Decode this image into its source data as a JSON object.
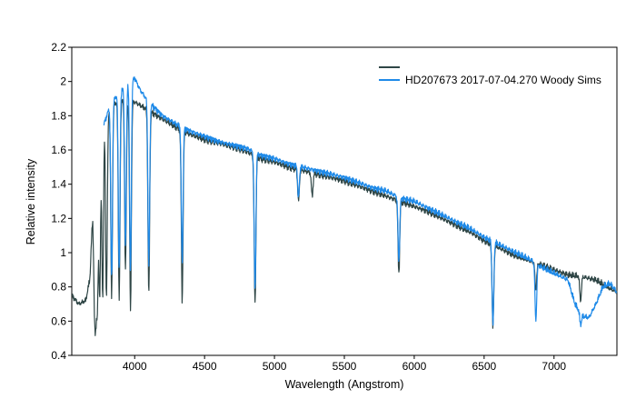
{
  "chart_data": {
    "type": "line",
    "title": "",
    "xlabel": "Wavelength (Angstrom)",
    "ylabel": "Relative intensity",
    "xlim": [
      3550,
      7450
    ],
    "ylim": [
      0.4,
      2.2
    ],
    "x_ticks": [
      4000,
      4500,
      5000,
      5500,
      6000,
      6500,
      7000
    ],
    "y_ticks": [
      0.4,
      0.6,
      0.8,
      1.0,
      1.2,
      1.4,
      1.6,
      1.8,
      2.0,
      2.2
    ],
    "x_tick_labels": [
      "4000",
      "4500",
      "5000",
      "5500",
      "6000",
      "6500",
      "7000"
    ],
    "y_tick_labels": [
      "0.4",
      "0.6",
      "0.8",
      "1",
      "1.2",
      "1.4",
      "1.6",
      "1.8",
      "2",
      "2.2"
    ],
    "grid": false,
    "legend_position": "top-right",
    "series": [
      {
        "name": "",
        "color": "#2f4646",
        "continuum": [
          [
            3550,
            0.75
          ],
          [
            3600,
            0.7
          ],
          [
            3650,
            0.72
          ],
          [
            3680,
            0.85
          ],
          [
            3700,
            1.25
          ],
          [
            3740,
            1.65
          ],
          [
            3780,
            1.8
          ],
          [
            3850,
            1.87
          ],
          [
            3920,
            1.9
          ],
          [
            4000,
            1.88
          ],
          [
            4100,
            1.83
          ],
          [
            4200,
            1.78
          ],
          [
            4300,
            1.73
          ],
          [
            4400,
            1.69
          ],
          [
            4500,
            1.66
          ],
          [
            4600,
            1.64
          ],
          [
            4700,
            1.62
          ],
          [
            4800,
            1.59
          ],
          [
            4900,
            1.55
          ],
          [
            5000,
            1.53
          ],
          [
            5100,
            1.5
          ],
          [
            5200,
            1.48
          ],
          [
            5300,
            1.46
          ],
          [
            5400,
            1.44
          ],
          [
            5500,
            1.42
          ],
          [
            5600,
            1.39
          ],
          [
            5700,
            1.36
          ],
          [
            5800,
            1.33
          ],
          [
            5900,
            1.3
          ],
          [
            6000,
            1.27
          ],
          [
            6100,
            1.24
          ],
          [
            6200,
            1.2
          ],
          [
            6300,
            1.16
          ],
          [
            6400,
            1.12
          ],
          [
            6500,
            1.07
          ],
          [
            6600,
            1.03
          ],
          [
            6700,
            0.99
          ],
          [
            6800,
            0.96
          ],
          [
            6900,
            0.93
          ],
          [
            7000,
            0.9
          ],
          [
            7100,
            0.87
          ],
          [
            7200,
            0.86
          ],
          [
            7300,
            0.84
          ],
          [
            7400,
            0.79
          ],
          [
            7450,
            0.77
          ]
        ],
        "absorption_lines": [
          [
            3712,
            0.8
          ],
          [
            3722,
            0.8
          ],
          [
            3734,
            0.78
          ],
          [
            3750,
            0.76
          ],
          [
            3771,
            0.74
          ],
          [
            3798,
            0.74
          ],
          [
            3835,
            0.74
          ],
          [
            3889,
            0.73
          ],
          [
            3934,
            0.9
          ],
          [
            3970,
            0.65
          ],
          [
            4101,
            0.75
          ],
          [
            4340,
            0.71
          ],
          [
            4861,
            0.7
          ],
          [
            5172,
            1.3
          ],
          [
            5270,
            1.33
          ],
          [
            5890,
            0.88
          ],
          [
            6563,
            0.56
          ],
          [
            6870,
            0.78
          ],
          [
            7190,
            0.72
          ]
        ]
      },
      {
        "name": "HD207673  2017-07-04.270  Woody Sims",
        "color": "#1f8ae8",
        "continuum": [
          [
            3780,
            1.75
          ],
          [
            3820,
            1.85
          ],
          [
            3870,
            1.92
          ],
          [
            3920,
            1.97
          ],
          [
            3960,
            2.0
          ],
          [
            4000,
            2.02
          ],
          [
            4040,
            1.95
          ],
          [
            4100,
            1.88
          ],
          [
            4200,
            1.8
          ],
          [
            4300,
            1.75
          ],
          [
            4400,
            1.71
          ],
          [
            4500,
            1.68
          ],
          [
            4600,
            1.65
          ],
          [
            4700,
            1.63
          ],
          [
            4800,
            1.61
          ],
          [
            4900,
            1.57
          ],
          [
            5000,
            1.55
          ],
          [
            5100,
            1.52
          ],
          [
            5200,
            1.5
          ],
          [
            5300,
            1.48
          ],
          [
            5400,
            1.46
          ],
          [
            5500,
            1.44
          ],
          [
            5600,
            1.41
          ],
          [
            5700,
            1.38
          ],
          [
            5800,
            1.36
          ],
          [
            5900,
            1.32
          ],
          [
            6000,
            1.3
          ],
          [
            6100,
            1.26
          ],
          [
            6200,
            1.22
          ],
          [
            6300,
            1.18
          ],
          [
            6400,
            1.14
          ],
          [
            6500,
            1.09
          ],
          [
            6600,
            1.05
          ],
          [
            6700,
            1.01
          ],
          [
            6800,
            0.97
          ],
          [
            6850,
            0.95
          ],
          [
            6900,
            0.92
          ],
          [
            7000,
            0.88
          ],
          [
            7100,
            0.84
          ],
          [
            7150,
            0.7
          ],
          [
            7200,
            0.63
          ],
          [
            7250,
            0.62
          ],
          [
            7300,
            0.7
          ],
          [
            7350,
            0.8
          ],
          [
            7400,
            0.82
          ],
          [
            7450,
            0.77
          ]
        ],
        "absorption_lines": [
          [
            3835,
            0.85
          ],
          [
            3889,
            0.9
          ],
          [
            3934,
            1.05
          ],
          [
            3970,
            0.88
          ],
          [
            4101,
            0.92
          ],
          [
            4340,
            0.95
          ],
          [
            4861,
            0.78
          ],
          [
            5172,
            1.32
          ],
          [
            5890,
            0.95
          ],
          [
            6563,
            0.58
          ],
          [
            6870,
            0.6
          ],
          [
            7190,
            0.58
          ]
        ]
      }
    ]
  }
}
